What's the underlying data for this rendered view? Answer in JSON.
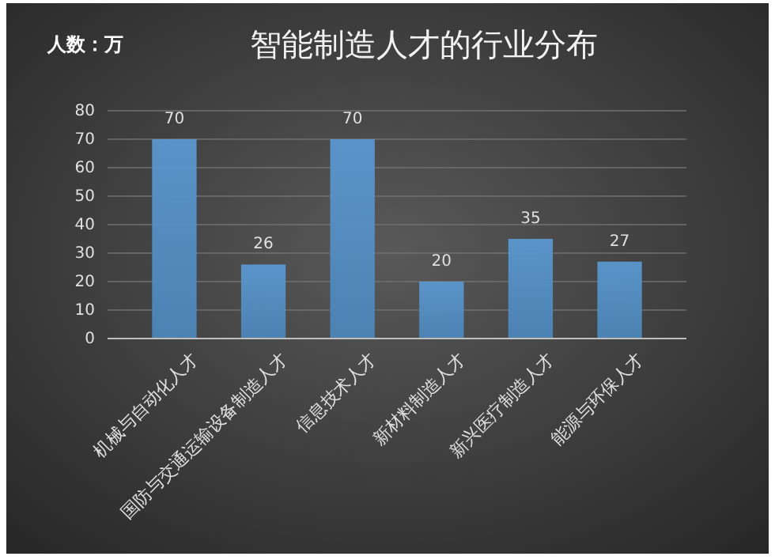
{
  "chart_data": {
    "type": "bar",
    "title": "智能制造人才的行业分布",
    "ylabel": "人数：万",
    "categories": [
      "机械与自动化人才",
      "国防与交通运输设备制造人才",
      "信息技术人才",
      "新材料制造人才",
      "新兴医疗制造人才",
      "能源与环保人才"
    ],
    "values": [
      70,
      26,
      70,
      20,
      35,
      27
    ],
    "color": "#5b9bd5",
    "ylim": [
      0,
      80
    ],
    "yticks": [
      0,
      10,
      20,
      30,
      40,
      50,
      60,
      70,
      80
    ],
    "grid": "y",
    "data_labels": true
  }
}
